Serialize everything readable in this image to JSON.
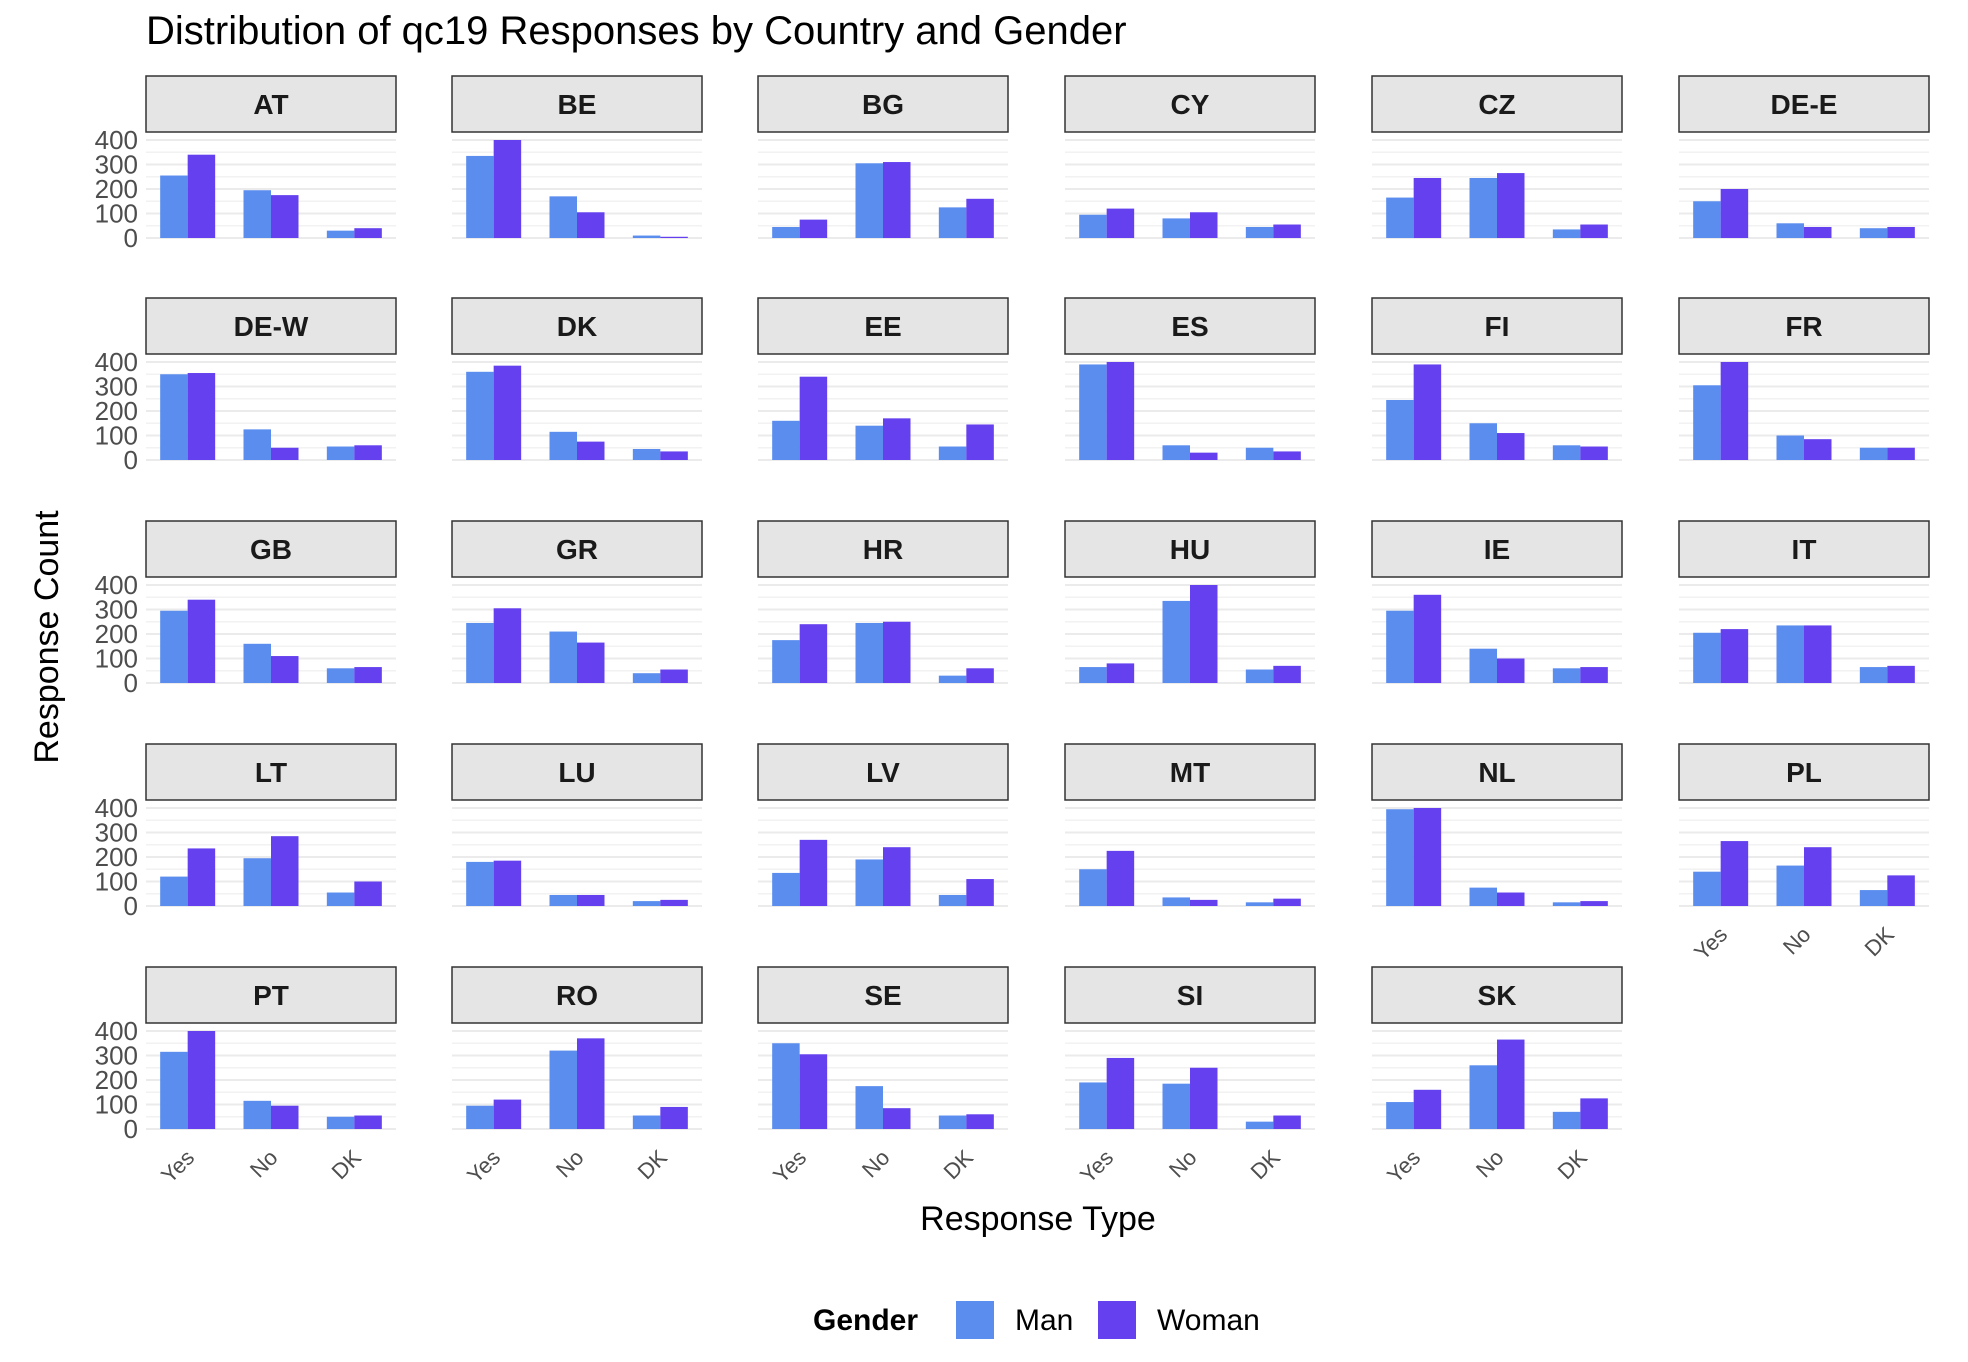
{
  "chart_data": {
    "type": "bar",
    "title": "Distribution of qc19 Responses by Country and Gender",
    "xlabel": "Response Type",
    "ylabel": "Response Count",
    "categories": [
      "Yes",
      "No",
      "DK"
    ],
    "y_ticks": [
      "0",
      "100",
      "200",
      "300",
      "400"
    ],
    "ylim": [
      0,
      400
    ],
    "grid": true,
    "legend": {
      "title": "Gender",
      "position": "bottom",
      "items": [
        {
          "name": "Man",
          "color": "#5B8DEF"
        },
        {
          "name": "Woman",
          "color": "#6440EE"
        }
      ]
    },
    "panels": [
      {
        "country": "AT",
        "man": [
          255,
          195,
          30
        ],
        "woman": [
          340,
          175,
          40
        ]
      },
      {
        "country": "BE",
        "man": [
          335,
          170,
          10
        ],
        "woman": [
          400,
          105,
          5
        ]
      },
      {
        "country": "BG",
        "man": [
          45,
          305,
          125
        ],
        "woman": [
          75,
          310,
          160
        ]
      },
      {
        "country": "CY",
        "man": [
          95,
          80,
          45
        ],
        "woman": [
          120,
          105,
          55
        ]
      },
      {
        "country": "CZ",
        "man": [
          165,
          245,
          35
        ],
        "woman": [
          245,
          265,
          55
        ]
      },
      {
        "country": "DE-E",
        "man": [
          150,
          60,
          40
        ],
        "woman": [
          200,
          45,
          45
        ]
      },
      {
        "country": "DE-W",
        "man": [
          350,
          125,
          55
        ],
        "woman": [
          355,
          50,
          60
        ]
      },
      {
        "country": "DK",
        "man": [
          360,
          115,
          45
        ],
        "woman": [
          385,
          75,
          35
        ]
      },
      {
        "country": "EE",
        "man": [
          160,
          140,
          55
        ],
        "woman": [
          340,
          170,
          145
        ]
      },
      {
        "country": "ES",
        "man": [
          390,
          60,
          50
        ],
        "woman": [
          400,
          30,
          35
        ]
      },
      {
        "country": "FI",
        "man": [
          245,
          150,
          60
        ],
        "woman": [
          390,
          110,
          55
        ]
      },
      {
        "country": "FR",
        "man": [
          305,
          100,
          50
        ],
        "woman": [
          400,
          85,
          50
        ]
      },
      {
        "country": "GB",
        "man": [
          295,
          160,
          60
        ],
        "woman": [
          340,
          110,
          65
        ]
      },
      {
        "country": "GR",
        "man": [
          245,
          210,
          40
        ],
        "woman": [
          305,
          165,
          55
        ]
      },
      {
        "country": "HR",
        "man": [
          175,
          245,
          30
        ],
        "woman": [
          240,
          250,
          60
        ]
      },
      {
        "country": "HU",
        "man": [
          65,
          335,
          55
        ],
        "woman": [
          80,
          400,
          70
        ]
      },
      {
        "country": "IE",
        "man": [
          295,
          140,
          60
        ],
        "woman": [
          360,
          100,
          65
        ]
      },
      {
        "country": "IT",
        "man": [
          205,
          235,
          65
        ],
        "woman": [
          220,
          235,
          70
        ]
      },
      {
        "country": "LT",
        "man": [
          120,
          195,
          55
        ],
        "woman": [
          235,
          285,
          100
        ]
      },
      {
        "country": "LU",
        "man": [
          180,
          45,
          20
        ],
        "woman": [
          185,
          45,
          25
        ]
      },
      {
        "country": "LV",
        "man": [
          135,
          190,
          45
        ],
        "woman": [
          270,
          240,
          110
        ]
      },
      {
        "country": "MT",
        "man": [
          150,
          35,
          15
        ],
        "woman": [
          225,
          25,
          30
        ]
      },
      {
        "country": "NL",
        "man": [
          395,
          75,
          15
        ],
        "woman": [
          400,
          55,
          20
        ]
      },
      {
        "country": "PL",
        "man": [
          140,
          165,
          65
        ],
        "woman": [
          265,
          240,
          125
        ]
      },
      {
        "country": "PT",
        "man": [
          315,
          115,
          50
        ],
        "woman": [
          400,
          95,
          55
        ]
      },
      {
        "country": "RO",
        "man": [
          95,
          320,
          55
        ],
        "woman": [
          120,
          370,
          90
        ]
      },
      {
        "country": "SE",
        "man": [
          350,
          175,
          55
        ],
        "woman": [
          305,
          85,
          60
        ]
      },
      {
        "country": "SI",
        "man": [
          190,
          185,
          30
        ],
        "woman": [
          290,
          250,
          55
        ]
      },
      {
        "country": "SK",
        "man": [
          110,
          260,
          70
        ],
        "woman": [
          160,
          365,
          125
        ]
      }
    ]
  }
}
